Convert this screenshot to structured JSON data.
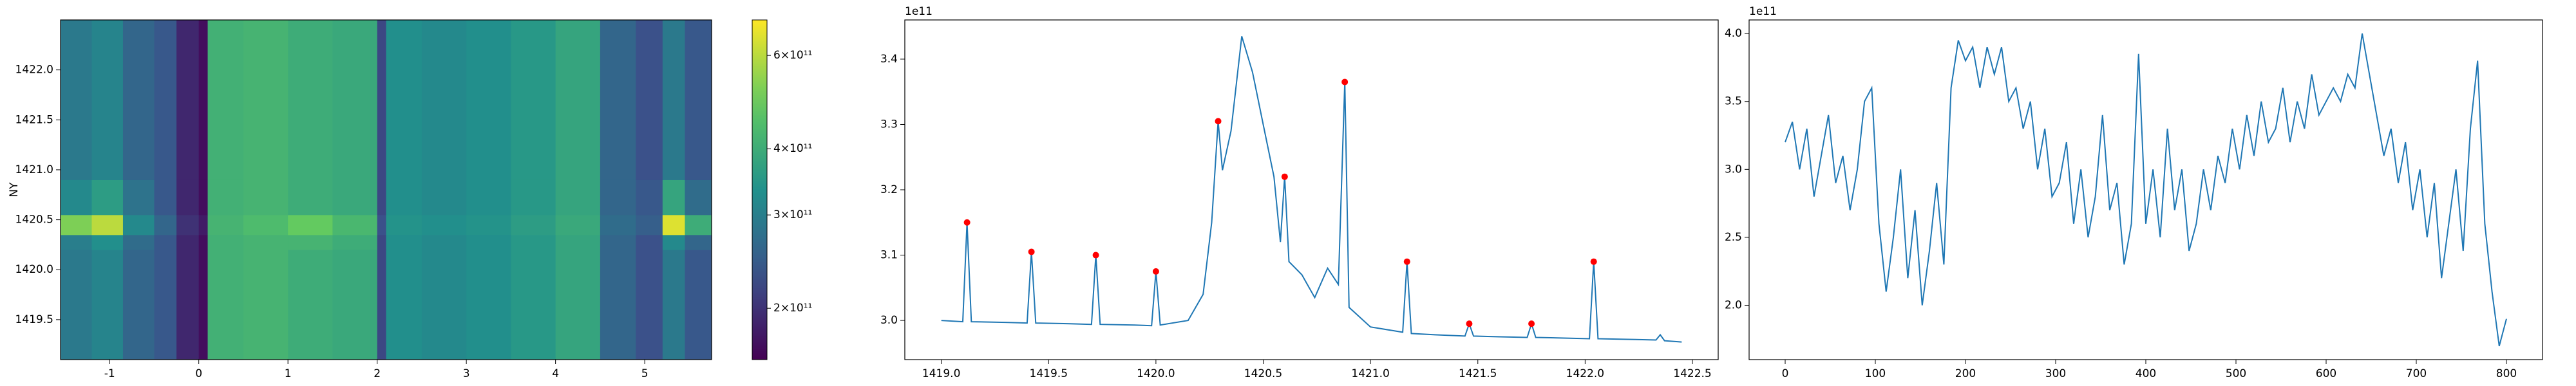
{
  "chart_data": [
    {
      "type": "heatmap",
      "ylabel": "NY",
      "xlim": [
        -1.55,
        5.75
      ],
      "ylim": [
        1419.1,
        1422.5
      ],
      "xticks": [
        -1,
        0,
        1,
        2,
        3,
        4,
        5
      ],
      "yticks": [
        1419.5,
        {
          "value": 1420,
          "label": "1420.0"
        },
        1420.5,
        {
          "value": 1421,
          "label": "1421.0"
        },
        1421.5,
        {
          "value": 1422,
          "label": "1422.0"
        }
      ],
      "xbins": [
        -1.55,
        -1.2,
        -0.85,
        -0.5,
        -0.25,
        0,
        0.1,
        0.5,
        1.0,
        1.5,
        2.0,
        2.1,
        2.5,
        3.0,
        3.5,
        4.0,
        4.5,
        4.9,
        5.2,
        5.45,
        5.75
      ],
      "ybins": [
        1419.1,
        1420.2,
        1420.35,
        1420.55,
        1420.9,
        1422.5
      ],
      "z": [
        [
          290000000000.0,
          310000000000.0,
          260000000000.0,
          240000000000.0,
          190000000000.0,
          170000000000.0,
          410000000000.0,
          420000000000.0,
          400000000000.0,
          390000000000.0,
          220000000000.0,
          330000000000.0,
          320000000000.0,
          330000000000.0,
          350000000000.0,
          380000000000.0,
          260000000000.0,
          230000000000.0,
          290000000000.0,
          240000000000.0
        ],
        [
          300000000000.0,
          330000000000.0,
          270000000000.0,
          240000000000.0,
          190000000000.0,
          170000000000.0,
          410000000000.0,
          420000000000.0,
          420000000000.0,
          400000000000.0,
          220000000000.0,
          330000000000.0,
          320000000000.0,
          330000000000.0,
          350000000000.0,
          380000000000.0,
          260000000000.0,
          230000000000.0,
          320000000000.0,
          260000000000.0
        ],
        [
          520000000000.0,
          600000000000.0,
          320000000000.0,
          260000000000.0,
          200000000000.0,
          180000000000.0,
          420000000000.0,
          440000000000.0,
          490000000000.0,
          430000000000.0,
          230000000000.0,
          340000000000.0,
          330000000000.0,
          340000000000.0,
          360000000000.0,
          390000000000.0,
          270000000000.0,
          250000000000.0,
          650000000000.0,
          400000000000.0
        ],
        [
          320000000000.0,
          360000000000.0,
          280000000000.0,
          240000000000.0,
          190000000000.0,
          170000000000.0,
          410000000000.0,
          420000000000.0,
          400000000000.0,
          390000000000.0,
          220000000000.0,
          330000000000.0,
          320000000000.0,
          330000000000.0,
          350000000000.0,
          380000000000.0,
          260000000000.0,
          240000000000.0,
          380000000000.0,
          270000000000.0
        ],
        [
          290000000000.0,
          310000000000.0,
          260000000000.0,
          240000000000.0,
          190000000000.0,
          170000000000.0,
          410000000000.0,
          420000000000.0,
          400000000000.0,
          390000000000.0,
          220000000000.0,
          330000000000.0,
          320000000000.0,
          330000000000.0,
          350000000000.0,
          380000000000.0,
          260000000000.0,
          230000000000.0,
          290000000000.0,
          240000000000.0
        ]
      ],
      "clim": [
        160000000000.0,
        700000000000.0
      ],
      "zscale": "log",
      "colorbar_ticks": [
        {
          "value": 200000000000.0,
          "label": "2×10¹¹"
        },
        {
          "value": 300000000000.0,
          "label": "3×10¹¹"
        },
        {
          "value": 400000000000.0,
          "label": "4×10¹¹"
        },
        {
          "value": 600000000000.0,
          "label": "6×10¹¹"
        }
      ]
    },
    {
      "type": "line",
      "y_offset_label": "1e11",
      "xlim": [
        1418.83,
        1422.62
      ],
      "ylim": [
        2.94,
        3.46
      ],
      "xticks": [
        {
          "value": 1419,
          "label": "1419.0"
        },
        1419.5,
        {
          "value": 1420,
          "label": "1420.0"
        },
        1420.5,
        {
          "value": 1421,
          "label": "1421.0"
        },
        1421.5,
        {
          "value": 1422,
          "label": "1422.0"
        },
        1422.5
      ],
      "yticks": [
        {
          "value": 3,
          "label": "3.0"
        },
        3.1,
        3.2,
        3.3,
        3.4
      ],
      "x": [
        1419.0,
        1419.1,
        1419.12,
        1419.14,
        1419.3,
        1419.4,
        1419.42,
        1419.44,
        1419.6,
        1419.7,
        1419.72,
        1419.74,
        1419.9,
        1419.98,
        1420.0,
        1420.02,
        1420.15,
        1420.22,
        1420.26,
        1420.29,
        1420.31,
        1420.35,
        1420.4,
        1420.45,
        1420.5,
        1420.55,
        1420.58,
        1420.6,
        1420.62,
        1420.68,
        1420.74,
        1420.8,
        1420.85,
        1420.88,
        1420.9,
        1421.0,
        1421.15,
        1421.17,
        1421.19,
        1421.3,
        1421.44,
        1421.46,
        1421.48,
        1421.6,
        1421.73,
        1421.75,
        1421.77,
        1421.9,
        1422.02,
        1422.04,
        1422.06,
        1422.2,
        1422.33,
        1422.35,
        1422.37,
        1422.45
      ],
      "series": [
        {
          "color": "#1f77b4",
          "values": [
            3.0,
            2.998,
            3.15,
            2.998,
            2.997,
            2.996,
            3.105,
            2.996,
            2.995,
            2.994,
            3.1,
            2.994,
            2.993,
            2.992,
            3.075,
            2.993,
            3.0,
            3.04,
            3.15,
            3.305,
            3.23,
            3.29,
            3.435,
            3.38,
            3.3,
            3.22,
            3.12,
            3.22,
            3.09,
            3.07,
            3.035,
            3.08,
            3.055,
            3.365,
            3.02,
            2.99,
            2.982,
            3.09,
            2.98,
            2.978,
            2.976,
            2.995,
            2.976,
            2.975,
            2.974,
            2.995,
            2.974,
            2.973,
            2.972,
            3.09,
            2.972,
            2.971,
            2.97,
            2.978,
            2.969,
            2.967
          ]
        }
      ],
      "peaks": {
        "color": "#ff0000",
        "x": [
          1419.12,
          1419.42,
          1419.72,
          1420.0,
          1420.29,
          1420.6,
          1420.88,
          1421.17,
          1421.46,
          1421.75,
          1422.04
        ],
        "values": [
          3.15,
          3.105,
          3.1,
          3.075,
          3.305,
          3.22,
          3.365,
          3.09,
          2.995,
          2.995,
          3.09
        ]
      }
    },
    {
      "type": "line",
      "y_offset_label": "1e11",
      "xlim": [
        -40,
        840
      ],
      "ylim": [
        1.6,
        4.1
      ],
      "xticks": [
        0,
        100,
        200,
        300,
        400,
        500,
        600,
        700,
        800
      ],
      "yticks": [
        {
          "value": 2,
          "label": "2.0"
        },
        2.5,
        {
          "value": 3,
          "label": "3.0"
        },
        3.5,
        {
          "value": 4,
          "label": "4.0"
        }
      ],
      "x": [
        0,
        8,
        16,
        24,
        32,
        40,
        48,
        56,
        64,
        72,
        80,
        88,
        96,
        104,
        112,
        120,
        128,
        136,
        144,
        152,
        160,
        168,
        176,
        184,
        192,
        200,
        208,
        216,
        224,
        232,
        240,
        248,
        256,
        264,
        272,
        280,
        288,
        296,
        304,
        312,
        320,
        328,
        336,
        344,
        352,
        360,
        368,
        376,
        384,
        392,
        400,
        408,
        416,
        424,
        432,
        440,
        448,
        456,
        464,
        472,
        480,
        488,
        496,
        504,
        512,
        520,
        528,
        536,
        544,
        552,
        560,
        568,
        576,
        584,
        592,
        600,
        608,
        616,
        624,
        632,
        640,
        648,
        656,
        664,
        672,
        680,
        688,
        696,
        704,
        712,
        720,
        728,
        736,
        744,
        752,
        760,
        768,
        776,
        784,
        792,
        800
      ],
      "series": [
        {
          "color": "#1f77b4",
          "values": [
            3.2,
            3.35,
            3.0,
            3.3,
            2.8,
            3.1,
            3.4,
            2.9,
            3.1,
            2.7,
            3.0,
            3.5,
            3.6,
            2.6,
            2.1,
            2.5,
            3.0,
            2.2,
            2.7,
            2.0,
            2.4,
            2.9,
            2.3,
            3.6,
            3.95,
            3.8,
            3.9,
            3.6,
            3.9,
            3.7,
            3.9,
            3.5,
            3.6,
            3.3,
            3.5,
            3.0,
            3.3,
            2.8,
            2.9,
            3.2,
            2.6,
            3.0,
            2.5,
            2.8,
            3.4,
            2.7,
            2.9,
            2.3,
            2.6,
            3.85,
            2.6,
            3.0,
            2.5,
            3.3,
            2.7,
            3.0,
            2.4,
            2.6,
            3.0,
            2.7,
            3.1,
            2.9,
            3.3,
            3.0,
            3.4,
            3.1,
            3.5,
            3.2,
            3.3,
            3.6,
            3.2,
            3.5,
            3.3,
            3.7,
            3.4,
            3.5,
            3.6,
            3.5,
            3.7,
            3.6,
            4.0,
            3.7,
            3.4,
            3.1,
            3.3,
            2.9,
            3.2,
            2.7,
            3.0,
            2.5,
            2.9,
            2.2,
            2.6,
            3.0,
            2.4,
            3.3,
            3.8,
            2.6,
            2.1,
            1.7,
            1.9
          ]
        }
      ]
    }
  ]
}
